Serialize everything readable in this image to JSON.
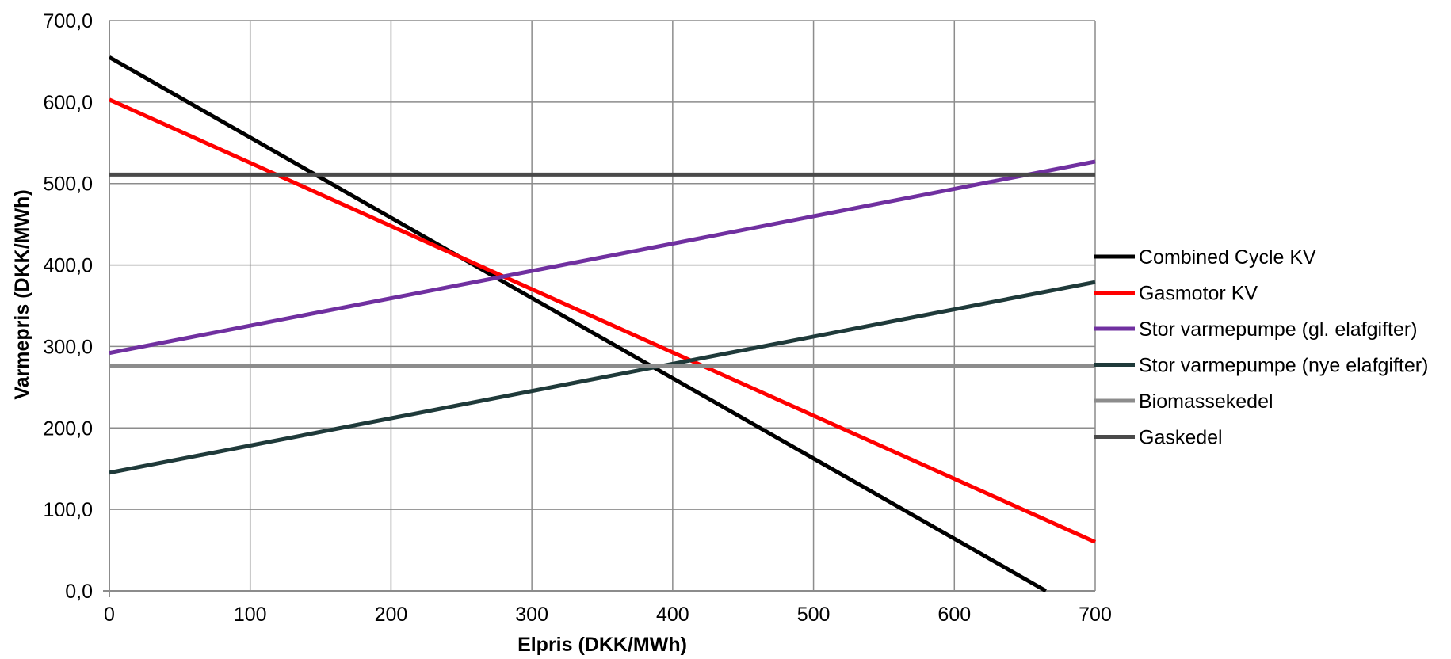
{
  "chart_data": {
    "type": "line",
    "xlabel": "Elpris (DKK/MWh)",
    "ylabel": "Varmepris (DKK/MWh)",
    "xlim": [
      0,
      700
    ],
    "ylim": [
      0,
      700
    ],
    "x_ticks": [
      "0",
      "100",
      "200",
      "300",
      "400",
      "500",
      "600",
      "700"
    ],
    "y_ticks": [
      "0,0",
      "100,0",
      "200,0",
      "300,0",
      "400,0",
      "500,0",
      "600,0",
      "700,0"
    ],
    "grid": true,
    "legend_position": "right",
    "series": [
      {
        "name": "Combined Cycle KV",
        "color": "#000000",
        "x": [
          0,
          665
        ],
        "y": [
          655,
          0
        ]
      },
      {
        "name": "Gasmotor KV",
        "color": "#ff0000",
        "x": [
          0,
          700
        ],
        "y": [
          603,
          60
        ]
      },
      {
        "name": "Stor varmepumpe (gl. elafgifter)",
        "color": "#7030a0",
        "x": [
          0,
          700
        ],
        "y": [
          292,
          527
        ]
      },
      {
        "name": "Stor varmepumpe (nye elafgifter)",
        "color": "#1f3a3a",
        "x": [
          0,
          700
        ],
        "y": [
          145,
          379
        ]
      },
      {
        "name": "Biomassekedel",
        "color": "#8c8c8c",
        "x": [
          0,
          700
        ],
        "y": [
          276,
          276
        ]
      },
      {
        "name": "Gaskedel",
        "color": "#4a4a4a",
        "x": [
          0,
          700
        ],
        "y": [
          511,
          511
        ]
      }
    ]
  }
}
